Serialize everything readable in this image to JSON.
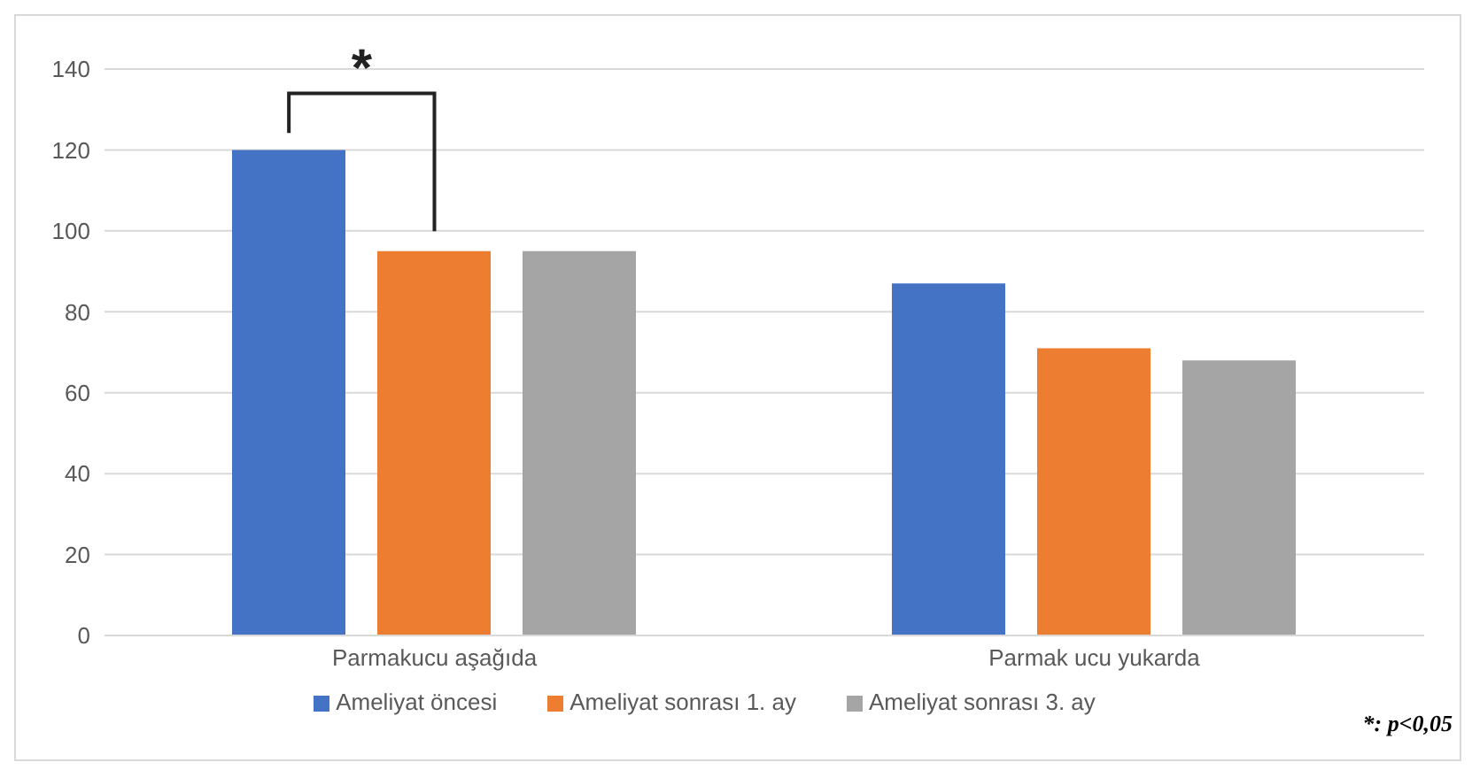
{
  "chart_data": {
    "type": "bar",
    "categories": [
      "Parmakucu aşağıda",
      "Parmak ucu yukarda"
    ],
    "series": [
      {
        "name": "Ameliyat öncesi",
        "color": "#4472c4",
        "values": [
          120,
          87
        ]
      },
      {
        "name": "Ameliyat sonrası 1. ay",
        "color": "#ed7d31",
        "values": [
          95,
          71
        ]
      },
      {
        "name": "Ameliyat sonrası 3. ay",
        "color": "#a5a5a5",
        "values": [
          95,
          68
        ]
      }
    ],
    "ylim": [
      0,
      140
    ],
    "yticks": [
      0,
      20,
      40,
      60,
      80,
      100,
      120,
      140
    ],
    "grid": "y",
    "legend": "bottom",
    "annotations": [
      "*",
      "*: p<0,05"
    ]
  }
}
